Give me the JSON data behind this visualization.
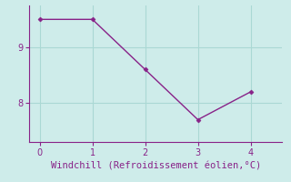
{
  "x": [
    0,
    1,
    2,
    3,
    4
  ],
  "y": [
    9.5,
    9.5,
    8.6,
    7.7,
    8.2
  ],
  "line_color": "#882288",
  "marker": "D",
  "markersize": 2.5,
  "linewidth": 1.0,
  "background_color": "#ceecea",
  "grid_color": "#aad8d4",
  "axis_color": "#882288",
  "xlabel": "Windchill (Refroidissement éolien,°C)",
  "xlabel_fontsize": 7.5,
  "tick_fontsize": 7,
  "xlim": [
    -0.2,
    4.6
  ],
  "ylim": [
    7.3,
    9.75
  ],
  "yticks": [
    8,
    9
  ],
  "xticks": [
    0,
    1,
    2,
    3,
    4
  ]
}
